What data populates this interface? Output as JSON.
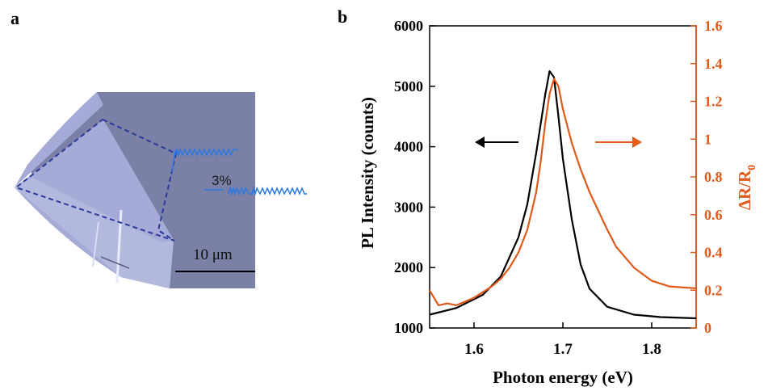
{
  "panels": {
    "a": {
      "label": "a",
      "scale_bar_text": "10 μm",
      "strain_label": "3%",
      "colors": {
        "substrate": "#7b80a6",
        "flake": "#a3a8d4",
        "outline": "#2a3a9a",
        "strain_line": "#2a78e0"
      }
    },
    "b": {
      "label": "b"
    }
  },
  "chart_data": {
    "type": "line",
    "xlabel": "Photon energy (eV)",
    "ylabel_left": "PL Intensity (counts)",
    "ylabel_right": "ΔR/R0",
    "xlim": [
      1.55,
      1.85
    ],
    "ylim_left": [
      1000,
      6000
    ],
    "ylim_right": [
      0,
      1.6
    ],
    "x_ticks": [
      "1.6",
      "1.7",
      "1.8"
    ],
    "y_left_ticks": [
      "1000",
      "2000",
      "3000",
      "4000",
      "5000",
      "6000"
    ],
    "y_right_ticks": [
      "0",
      "0.2",
      "0.4",
      "0.6",
      "0.8",
      "1",
      "1.2",
      "1.4",
      "1.6"
    ],
    "grid": false,
    "series": [
      {
        "axis": "left",
        "color": "#000000",
        "x": [
          1.55,
          1.58,
          1.61,
          1.63,
          1.65,
          1.66,
          1.67,
          1.68,
          1.685,
          1.69,
          1.695,
          1.7,
          1.71,
          1.72,
          1.73,
          1.75,
          1.78,
          1.81,
          1.85
        ],
        "y": [
          1220,
          1330,
          1550,
          1850,
          2500,
          3050,
          3900,
          4850,
          5250,
          5150,
          4500,
          3800,
          2800,
          2050,
          1650,
          1350,
          1220,
          1180,
          1160
        ]
      },
      {
        "axis": "right",
        "color": "#e05a1a",
        "x": [
          1.55,
          1.56,
          1.57,
          1.58,
          1.59,
          1.6,
          1.61,
          1.62,
          1.63,
          1.64,
          1.65,
          1.66,
          1.67,
          1.675,
          1.68,
          1.685,
          1.69,
          1.695,
          1.7,
          1.71,
          1.72,
          1.73,
          1.74,
          1.75,
          1.76,
          1.78,
          1.8,
          1.82,
          1.85
        ],
        "y": [
          0.2,
          0.12,
          0.13,
          0.12,
          0.14,
          0.16,
          0.19,
          0.22,
          0.26,
          0.32,
          0.4,
          0.52,
          0.72,
          0.88,
          1.08,
          1.24,
          1.32,
          1.28,
          1.16,
          0.98,
          0.84,
          0.72,
          0.62,
          0.52,
          0.43,
          0.32,
          0.25,
          0.22,
          0.21
        ]
      }
    ]
  }
}
